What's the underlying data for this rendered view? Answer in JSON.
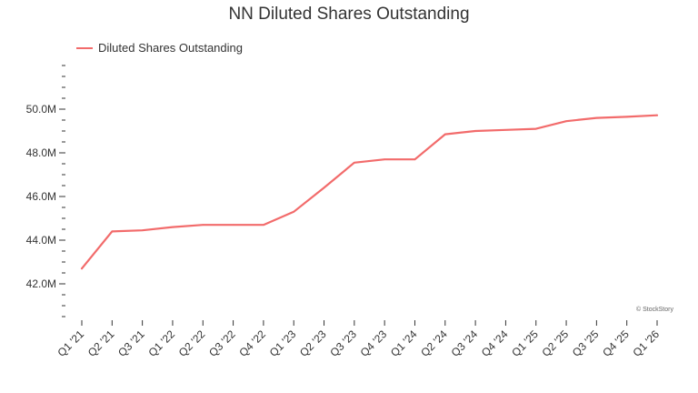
{
  "title": "NN Diluted Shares Outstanding",
  "credit": "© StockStory",
  "chart_data": {
    "type": "line",
    "title": "NN Diluted Shares Outstanding",
    "xlabel": "",
    "ylabel": "",
    "categories": [
      "Q1 '21",
      "Q2 '21",
      "Q3 '21",
      "Q1 '22",
      "Q2 '22",
      "Q3 '22",
      "Q4 '22",
      "Q1 '23",
      "Q2 '23",
      "Q3 '23",
      "Q4 '23",
      "Q1 '24",
      "Q2 '24",
      "Q3 '24",
      "Q4 '24",
      "Q1 '25",
      "Q2 '25",
      "Q3 '25",
      "Q4 '25",
      "Q1 '26"
    ],
    "series": [
      {
        "name": "Diluted Shares Outstanding",
        "color": "#f26b6b",
        "values": [
          42.7,
          44.4,
          44.45,
          44.6,
          44.7,
          44.7,
          44.7,
          45.3,
          46.4,
          47.55,
          47.7,
          47.7,
          48.85,
          49.0,
          49.05,
          49.1,
          49.45,
          49.6,
          49.65,
          49.72
        ]
      }
    ],
    "ylim": [
      40.5,
      52.0
    ],
    "yticks": [
      42.0,
      44.0,
      46.0,
      48.0,
      50.0
    ],
    "ytick_labels": [
      "42.0M",
      "44.0M",
      "46.0M",
      "48.0M",
      "50.0M"
    ],
    "legend": "top-left",
    "grid": false
  }
}
